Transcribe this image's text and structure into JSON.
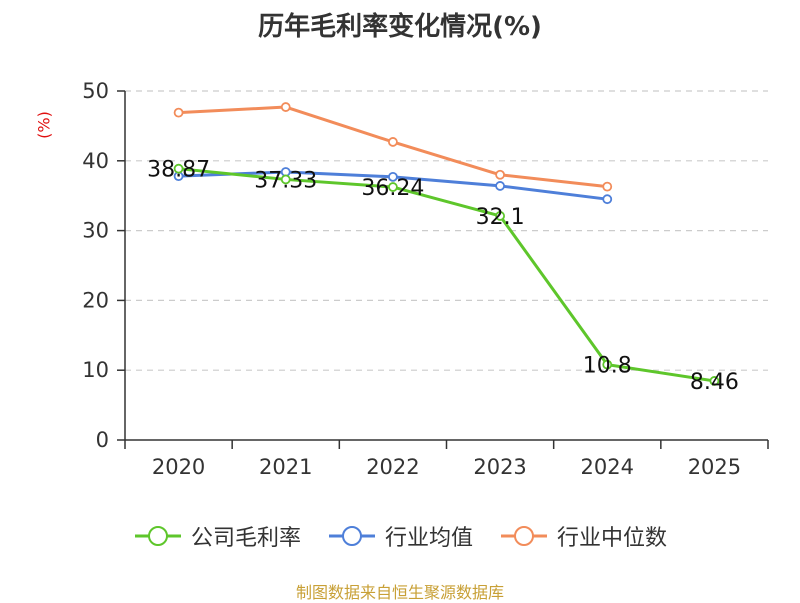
{
  "chart_data": {
    "type": "line",
    "title": "历年毛利率变化情况(%)",
    "ylabel": "(%)",
    "xlabel": "",
    "categories": [
      "2020",
      "2021",
      "2022",
      "2023",
      "2024",
      "2025"
    ],
    "ylim": [
      0,
      50
    ],
    "yticks": [
      0,
      10,
      20,
      30,
      40,
      50
    ],
    "grid": true,
    "legend_position": "bottom",
    "series": [
      {
        "name": "公司毛利率",
        "color": "#5ec62b",
        "values": [
          38.87,
          37.33,
          36.24,
          32.1,
          10.8,
          8.46
        ],
        "labels": [
          "38.87",
          "37.33",
          "36.24",
          "32.1",
          "10.8",
          "8.46"
        ]
      },
      {
        "name": "行业均值",
        "color": "#4e7fd9",
        "values": [
          37.8,
          38.4,
          37.7,
          36.4,
          34.5,
          null
        ]
      },
      {
        "name": "行业中位数",
        "color": "#f28c5a",
        "values": [
          46.9,
          47.7,
          42.7,
          38.0,
          36.3,
          null
        ]
      }
    ]
  },
  "source": "制图数据来自恒生聚源数据库"
}
